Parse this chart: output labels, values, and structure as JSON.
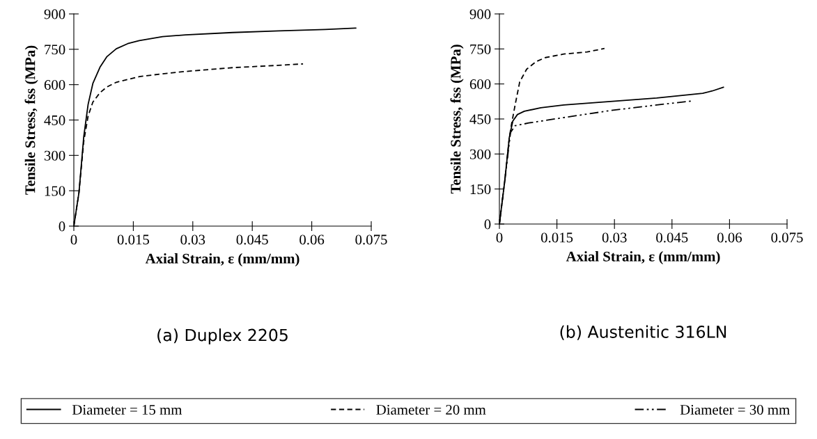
{
  "chart_data": [
    {
      "type": "line",
      "xlabel": "Axial Strain, ε (mm/mm)",
      "ylabel": "Tensile Stress, fss (MPa)",
      "annotations": [
        "(a) Duplex 2205"
      ],
      "xlim": [
        0,
        0.075
      ],
      "xticks": [
        0,
        0.015,
        0.03,
        0.045,
        0.06,
        0.075
      ],
      "ylim": [
        0,
        900
      ],
      "yticks": [
        0,
        150,
        300,
        450,
        600,
        750,
        900
      ],
      "grid": false,
      "legend": "bottom",
      "marker": "none",
      "series": [
        {
          "name": "Diameter = 15 mm",
          "color": "#000000",
          "line_style": "solid",
          "x": [
            0,
            0.0013,
            0.0025,
            0.0036,
            0.0048,
            0.0066,
            0.0083,
            0.0107,
            0.0136,
            0.0165,
            0.0224,
            0.0282,
            0.04,
            0.0517,
            0.0634,
            0.0711
          ],
          "values": [
            0,
            143,
            379,
            516,
            605,
            674,
            718,
            752,
            774,
            787,
            804,
            811,
            821,
            828,
            834,
            840
          ]
        },
        {
          "name": "Diameter = 20 mm",
          "color": "#000000",
          "line_style": "dashed",
          "x": [
            0,
            0.0013,
            0.0025,
            0.0036,
            0.0048,
            0.0066,
            0.0083,
            0.0107,
            0.0165,
            0.0224,
            0.0282,
            0.04,
            0.0517,
            0.0578
          ],
          "values": [
            0,
            143,
            359,
            467,
            526,
            566,
            590,
            610,
            634,
            646,
            656,
            672,
            682,
            688
          ]
        }
      ]
    },
    {
      "type": "line",
      "xlabel": "Axial Strain, ε (mm/mm)",
      "ylabel": "Tensile Stress, fss (MPa)",
      "annotations": [
        "(b) Austenitic 316LN"
      ],
      "xlim": [
        0,
        0.075
      ],
      "xticks": [
        0,
        0.015,
        0.03,
        0.045,
        0.06,
        0.075
      ],
      "ylim": [
        0,
        900
      ],
      "yticks": [
        0,
        150,
        300,
        450,
        600,
        750,
        900
      ],
      "grid": false,
      "legend": "bottom",
      "marker": "none",
      "series": [
        {
          "name": "Diameter = 15 mm",
          "color": "#000000",
          "line_style": "solid",
          "x": [
            0,
            0.0014,
            0.0026,
            0.0035,
            0.0047,
            0.0065,
            0.0108,
            0.0168,
            0.0289,
            0.041,
            0.053,
            0.0555,
            0.0584
          ],
          "values": [
            0,
            185,
            372,
            441,
            469,
            483,
            498,
            510,
            525,
            540,
            560,
            570,
            586
          ]
        },
        {
          "name": "Diameter = 20 mm",
          "color": "#000000",
          "line_style": "dashed",
          "x": [
            0,
            0.0014,
            0.0026,
            0.0032,
            0.0041,
            0.0053,
            0.0071,
            0.0096,
            0.012,
            0.0168,
            0.0229,
            0.0274
          ],
          "values": [
            0,
            185,
            372,
            431,
            510,
            609,
            663,
            696,
            713,
            728,
            737,
            752
          ]
        },
        {
          "name": "Diameter = 30 mm",
          "color": "#000000",
          "line_style": "dashdot",
          "x": [
            0,
            0.0014,
            0.0029,
            0.0041,
            0.0077,
            0.0168,
            0.0289,
            0.041,
            0.0501
          ],
          "values": [
            0,
            185,
            392,
            421,
            433,
            456,
            486,
            510,
            527
          ]
        }
      ]
    }
  ]
}
